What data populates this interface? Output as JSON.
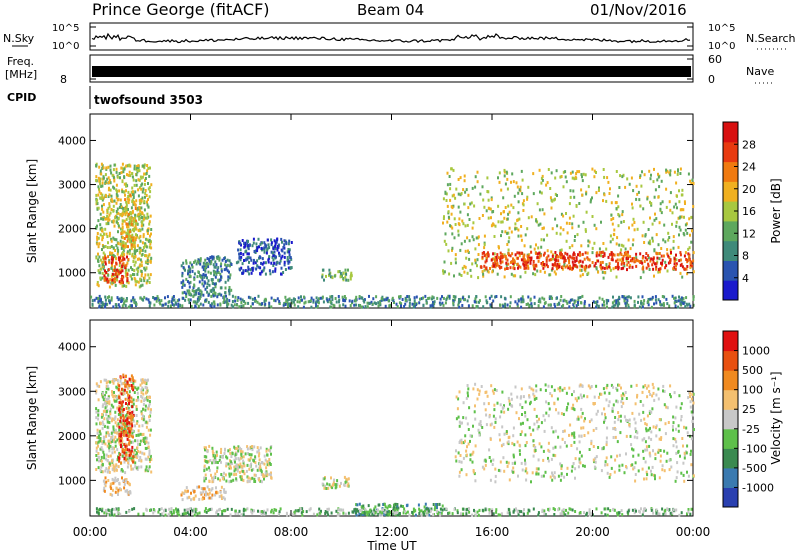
{
  "header": {
    "station": "Prince George (fitACF)",
    "beam": "Beam 04",
    "date": "01/Nov/2016"
  },
  "noise_panel": {
    "left_label": "N.Sky",
    "left_ticks": [
      "10^5",
      "10^0"
    ],
    "right_label": "N.Search",
    "right_ticks": [
      "10^5",
      "10^0"
    ]
  },
  "freq_panel": {
    "left_label_line1": "Freq.",
    "left_label_line2": "[MHz]",
    "left_tick": "8",
    "right_label": "Nave",
    "right_ticks": [
      "60",
      "0"
    ]
  },
  "cpid_panel": {
    "label": "CPID",
    "value": "twofsound 3503"
  },
  "chart_data": [
    {
      "type": "heatmap",
      "panel": "power",
      "ylabel": "Slant Range [km]",
      "ylim": [
        200,
        4600
      ],
      "yticks": [
        "1000",
        "2000",
        "3000",
        "4000"
      ],
      "xlabel": "Time UT",
      "xlim_hours": [
        0,
        24
      ],
      "xticks": [
        "00:00",
        "04:00",
        "08:00",
        "12:00",
        "16:00",
        "20:00",
        "00:00"
      ],
      "colorbar": {
        "label": "Power [dB]",
        "ticks": [
          "4",
          "8",
          "12",
          "16",
          "20",
          "24",
          "28"
        ],
        "colors": [
          "#1a1acc",
          "#2a54b0",
          "#3f8a7a",
          "#5ea85e",
          "#a8c840",
          "#f0b020",
          "#f07a10",
          "#e83a10",
          "#d81010"
        ]
      },
      "regions": [
        {
          "t0": 0.2,
          "t1": 2.4,
          "r0": 700,
          "r1": 3500,
          "level": 4
        },
        {
          "t0": 0.5,
          "t1": 1.5,
          "r0": 800,
          "r1": 1400,
          "level": 7
        },
        {
          "t0": 1.2,
          "t1": 1.8,
          "r0": 1600,
          "r1": 2800,
          "level": 5
        },
        {
          "t0": 3.6,
          "t1": 5.6,
          "r0": 500,
          "r1": 1400,
          "level": 2
        },
        {
          "t0": 5.8,
          "t1": 8.0,
          "r0": 1000,
          "r1": 1800,
          "level": 1
        },
        {
          "t0": 9.2,
          "t1": 10.4,
          "r0": 850,
          "r1": 1100,
          "level": 3
        },
        {
          "t0": 14.0,
          "t1": 24.0,
          "r0": 900,
          "r1": 3400,
          "level": 4
        },
        {
          "t0": 15.5,
          "t1": 24.0,
          "r0": 1100,
          "r1": 1500,
          "level": 7
        },
        {
          "t0": 0.0,
          "t1": 24.0,
          "r0": 250,
          "r1": 500,
          "level": 2
        }
      ]
    },
    {
      "type": "heatmap",
      "panel": "velocity",
      "ylabel": "Slant Range [km]",
      "ylim": [
        200,
        4600
      ],
      "yticks": [
        "1000",
        "2000",
        "3000",
        "4000"
      ],
      "xlabel": "Time UT",
      "xlim_hours": [
        0,
        24
      ],
      "xticks": [
        "00:00",
        "04:00",
        "08:00",
        "12:00",
        "16:00",
        "20:00",
        "00:00"
      ],
      "colorbar": {
        "label": "Velocity [m s⁻¹]",
        "ticks": [
          "1000",
          "500",
          "100",
          "25",
          "-25",
          "-100",
          "-500",
          "-1000"
        ],
        "colors": [
          "#2a40b0",
          "#3a7ab0",
          "#3a8a50",
          "#5ec04a",
          "#c8c8c8",
          "#f4c070",
          "#f08a20",
          "#e85010",
          "#e01010"
        ]
      },
      "regions": [
        {
          "t0": 0.2,
          "t1": 2.4,
          "r0": 1200,
          "r1": 3300,
          "level": 4
        },
        {
          "t0": 0.5,
          "t1": 1.6,
          "r0": 700,
          "r1": 1100,
          "level": 5
        },
        {
          "t0": 1.1,
          "t1": 1.7,
          "r0": 1400,
          "r1": 3400,
          "level": 7
        },
        {
          "t0": 3.6,
          "t1": 5.4,
          "r0": 600,
          "r1": 900,
          "level": 5
        },
        {
          "t0": 4.5,
          "t1": 7.2,
          "r0": 1000,
          "r1": 1800,
          "level": 4
        },
        {
          "t0": 9.2,
          "t1": 10.4,
          "r0": 850,
          "r1": 1100,
          "level": 4
        },
        {
          "t0": 10.5,
          "t1": 14.0,
          "r0": 250,
          "r1": 500,
          "level": 2
        },
        {
          "t0": 14.5,
          "t1": 24.0,
          "r0": 1000,
          "r1": 3200,
          "level": 4
        },
        {
          "t0": 0.0,
          "t1": 24.0,
          "r0": 250,
          "r1": 400,
          "level": 3
        }
      ]
    }
  ]
}
